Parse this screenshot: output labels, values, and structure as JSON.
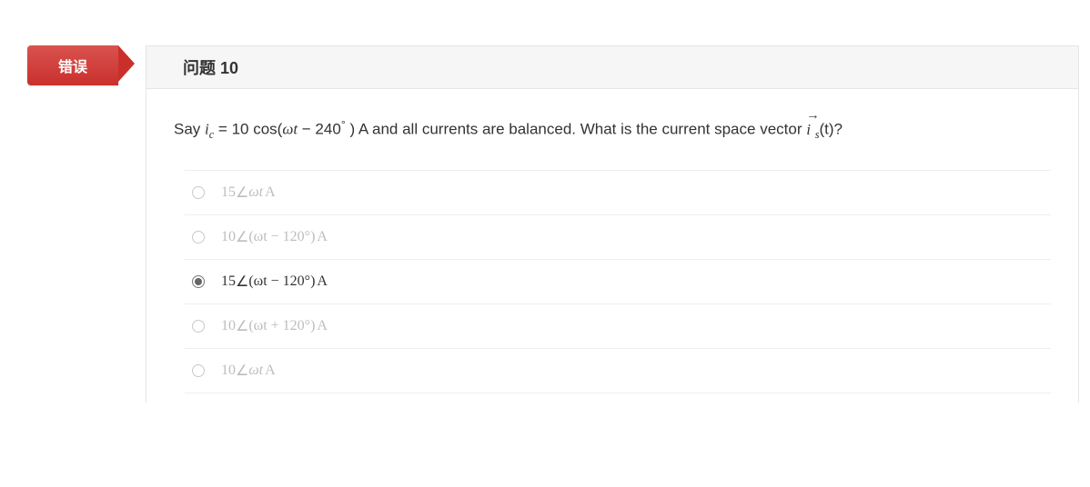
{
  "badge": {
    "label": "错误",
    "bg_top": "#d9534f",
    "bg_bottom": "#c9302c",
    "text_color": "#ffffff"
  },
  "header": {
    "title": "问题 10",
    "bg": "#f6f6f6",
    "border": "#e5e5e5"
  },
  "question": {
    "prefix": "Say ",
    "var": "i",
    "var_sub": "c",
    "eq": " = 10 cos(",
    "omega_t": "ωt",
    "minus": " − 240",
    "deg": "°",
    "close": " )",
    "unit": " A",
    "mid": " and all currents are balanced. What is the current space vector ",
    "vec_var": "i",
    "vec_sub": "s",
    "tail": "(t)?"
  },
  "options": [
    {
      "magnitude": "15",
      "angle_expr": "ωt",
      "unit": "A",
      "selected": false
    },
    {
      "magnitude": "10",
      "angle_expr": "(ωt − 120°)",
      "unit": "A",
      "selected": false
    },
    {
      "magnitude": "15",
      "angle_expr": "(ωt − 120°)",
      "unit": "A",
      "selected": true
    },
    {
      "magnitude": "10",
      "angle_expr": "(ωt + 120°)",
      "unit": "A",
      "selected": false
    },
    {
      "magnitude": "10",
      "angle_expr": "ωt",
      "unit": "A",
      "selected": false
    }
  ],
  "colors": {
    "option_muted": "#bdbdbd",
    "option_active": "#333333",
    "divider": "#eeeeee"
  }
}
